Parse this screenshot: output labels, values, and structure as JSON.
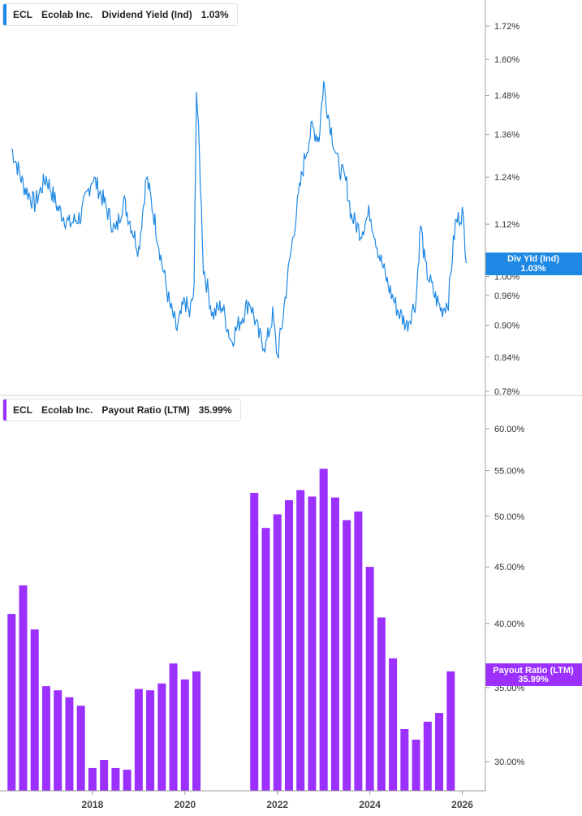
{
  "colors": {
    "yield_line": "#1e88e5",
    "payout_bar": "#9b30ff",
    "axis": "#9e9e9e",
    "divider": "#cfcfcf"
  },
  "yield_legend": {
    "ticker": "ECL",
    "company": "Ecolab Inc.",
    "metric": "Dividend Yield (Ind)",
    "value": "1.03%"
  },
  "payout_legend": {
    "ticker": "ECL",
    "company": "Ecolab Inc.",
    "metric": "Payout Ratio (LTM)",
    "value": "35.99%"
  },
  "yield_badge": {
    "label": "Div Yld (Ind)",
    "value": "1.03%"
  },
  "payout_badge": {
    "label": "Payout Ratio (LTM)",
    "value": "35.99%"
  },
  "chart_data": [
    {
      "type": "line",
      "scale": "log",
      "series": [
        {
          "name": "Dividend Yield (Ind)",
          "x": [
            2016.25,
            2016.5,
            2016.75,
            2017.0,
            2017.25,
            2017.5,
            2017.75,
            2018.0,
            2018.17,
            2018.33,
            2018.5,
            2018.67,
            2018.83,
            2019.0,
            2019.17,
            2019.33,
            2019.5,
            2019.67,
            2019.83,
            2020.0,
            2020.1,
            2020.2,
            2020.25,
            2020.4,
            2020.6,
            2020.8,
            2021.0,
            2021.2,
            2021.4,
            2021.6,
            2021.75,
            2021.9,
            2022.0,
            2022.1,
            2022.3,
            2022.5,
            2022.6,
            2022.75,
            2022.9,
            2023.0,
            2023.1,
            2023.3,
            2023.5,
            2023.6,
            2023.8,
            2024.0,
            2024.2,
            2024.4,
            2024.6,
            2024.8,
            2025.0,
            2025.1,
            2025.2,
            2025.4,
            2025.55,
            2025.7,
            2025.85,
            2026.0,
            2026.1
          ],
          "values": [
            1.32,
            1.22,
            1.17,
            1.24,
            1.16,
            1.12,
            1.14,
            1.24,
            1.2,
            1.15,
            1.1,
            1.18,
            1.12,
            1.06,
            1.24,
            1.14,
            1.03,
            0.94,
            0.89,
            0.95,
            0.92,
            0.97,
            1.5,
            1.02,
            0.92,
            0.94,
            0.87,
            0.91,
            0.95,
            0.88,
            0.86,
            0.92,
            0.84,
            0.9,
            1.06,
            1.22,
            1.3,
            1.38,
            1.35,
            1.52,
            1.42,
            1.28,
            1.22,
            1.14,
            1.1,
            1.15,
            1.05,
            0.98,
            0.93,
            0.9,
            0.95,
            1.12,
            1.02,
            0.96,
            0.93,
            0.95,
            1.12,
            1.15,
            1.03
          ]
        }
      ],
      "yticks": [
        "1.72%",
        "1.60%",
        "1.48%",
        "1.36%",
        "1.24%",
        "1.12%",
        "1.00%",
        "0.96%",
        "0.90%",
        "0.84%",
        "0.78%"
      ],
      "ytick_values": [
        1.72,
        1.6,
        1.48,
        1.36,
        1.24,
        1.12,
        1.0,
        0.96,
        0.9,
        0.84,
        0.78
      ]
    },
    {
      "type": "bar",
      "scale": "log",
      "series": [
        {
          "name": "Payout Ratio (LTM)",
          "x": [
            2016.25,
            2016.5,
            2016.75,
            2017.0,
            2017.25,
            2017.5,
            2017.75,
            2018.0,
            2018.25,
            2018.5,
            2018.75,
            2019.0,
            2019.25,
            2019.5,
            2019.75,
            2020.0,
            2020.25,
            2021.5,
            2021.75,
            2022.0,
            2022.25,
            2022.5,
            2022.75,
            2023.0,
            2023.25,
            2023.5,
            2023.75,
            2024.0,
            2024.25,
            2024.5,
            2024.75,
            2025.0,
            2025.25,
            2025.5,
            2025.75
          ],
          "values": [
            40.8,
            43.3,
            39.5,
            35.1,
            34.8,
            34.3,
            33.7,
            29.6,
            30.1,
            29.6,
            29.5,
            34.9,
            34.8,
            35.3,
            36.8,
            35.6,
            36.2,
            52.5,
            48.8,
            50.2,
            51.7,
            52.8,
            52.1,
            55.2,
            52.0,
            49.6,
            50.5,
            45.0,
            40.5,
            37.2,
            32.1,
            31.4,
            32.6,
            33.2,
            36.2
          ]
        }
      ],
      "yticks": [
        "60.00%",
        "55.00%",
        "50.00%",
        "45.00%",
        "40.00%",
        "35.00%",
        "30.00%"
      ],
      "ytick_values": [
        60,
        55,
        50,
        45,
        40,
        35,
        30
      ]
    }
  ],
  "xticks": [
    "2018",
    "2020",
    "2022",
    "2024",
    "2026"
  ],
  "xtick_values": [
    2018,
    2020,
    2022,
    2024,
    2026
  ]
}
